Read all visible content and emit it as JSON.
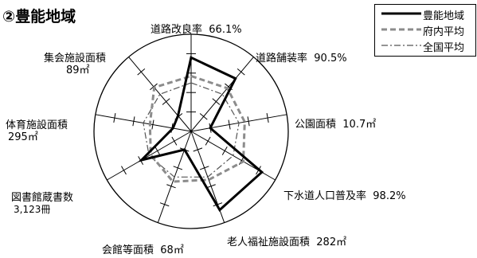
{
  "title": "②豊能地域",
  "chart_data": {
    "type": "radar",
    "axes": [
      {
        "name": "道路改良率",
        "value_text": "66.1%"
      },
      {
        "name": "道路舗装率",
        "value_text": "90.5%"
      },
      {
        "name": "公園面積",
        "value_text": "10.7㎡"
      },
      {
        "name": "下水道人口普及率",
        "value_text": "98.2%"
      },
      {
        "name": "老人福祉施設面積",
        "value_text": "282㎡"
      },
      {
        "name": "会館等面積",
        "value_text": "68㎡"
      },
      {
        "name": "図書館蔵書数",
        "value_text": "3,123冊"
      },
      {
        "name": "体育施設面積",
        "value_text": "295㎡"
      },
      {
        "name": "集会施設面積",
        "value_text": "89㎡"
      }
    ],
    "series": [
      {
        "name": "豊能地域",
        "values": [
          0.76,
          0.71,
          0.2,
          0.84,
          0.86,
          0.2,
          0.59,
          0.19,
          0.21
        ]
      },
      {
        "name": "府内平均",
        "values": [
          0.57,
          0.58,
          0.56,
          0.62,
          0.53,
          0.55,
          0.48,
          0.43,
          0.59
        ]
      },
      {
        "name": "全国平均",
        "values": [
          0.5,
          0.5,
          0.5,
          0.5,
          0.5,
          0.5,
          0.5,
          0.5,
          0.5
        ]
      }
    ],
    "ticks_per_axis": 4,
    "legend_position": "top-right",
    "colors": {
      "豊能地域": "#000000",
      "府内平均": "#8c8c8c",
      "全国平均": "#555555"
    }
  }
}
